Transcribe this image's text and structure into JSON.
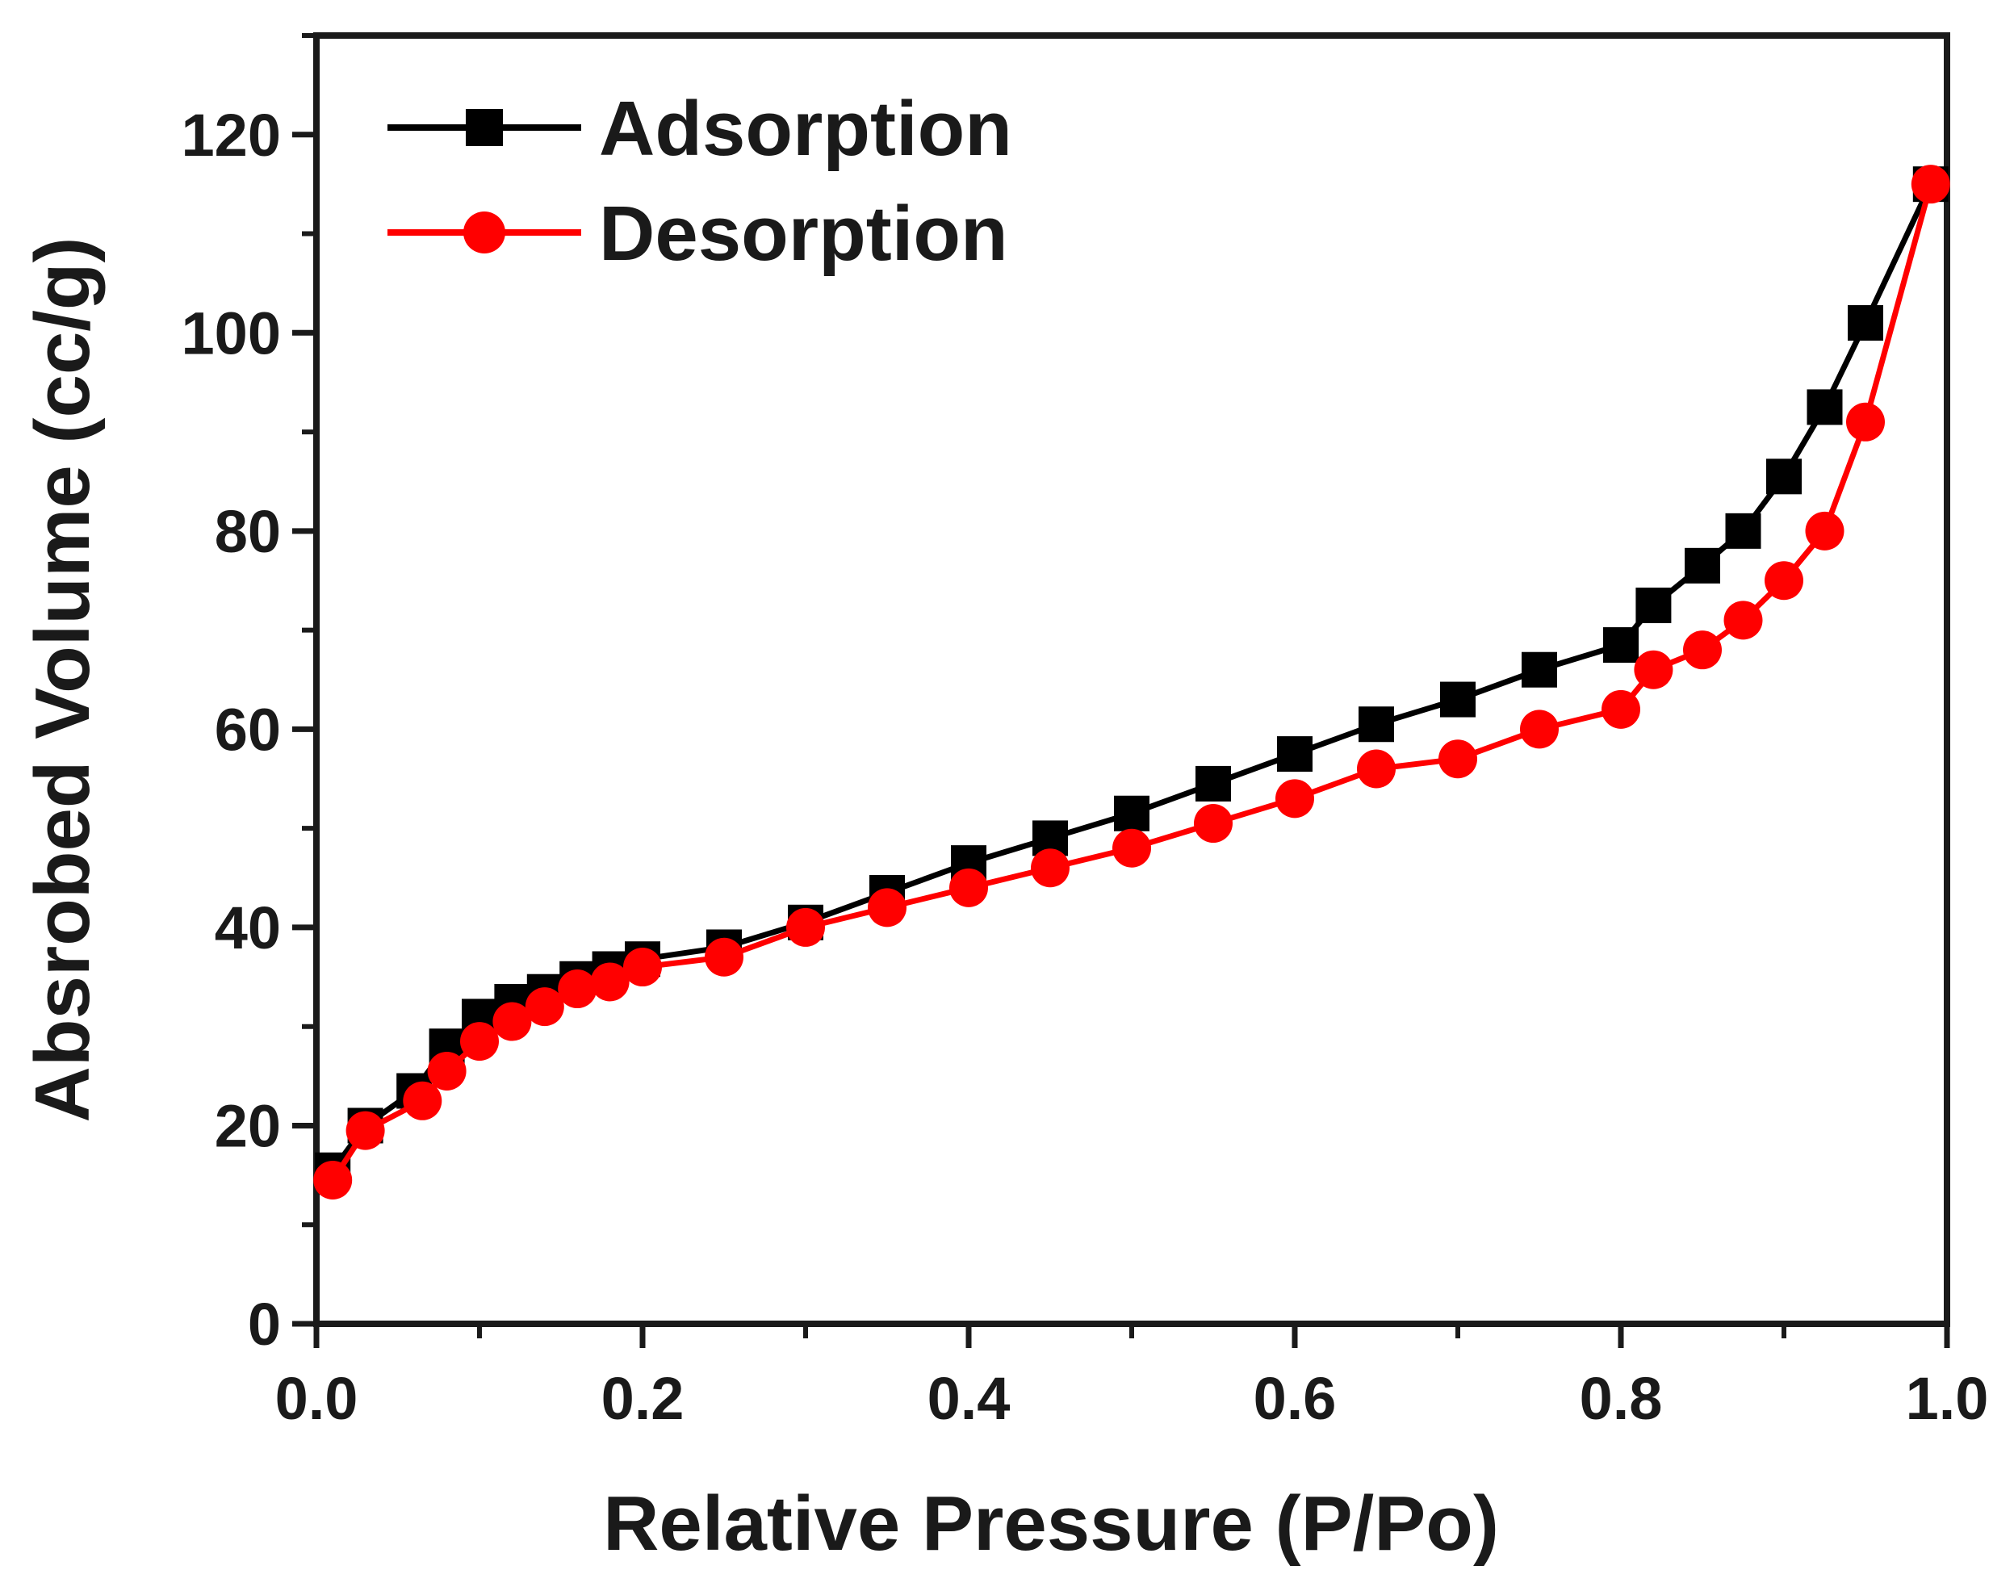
{
  "chart_data": {
    "type": "line",
    "title": "",
    "xlabel": "Relative Pressure (P/Po)",
    "ylabel": "Absrobed Volume (cc/g)",
    "xlim": [
      0.0,
      1.0
    ],
    "ylim": [
      0,
      130
    ],
    "xticks": [
      0.0,
      0.2,
      0.4,
      0.6,
      0.8,
      1.0
    ],
    "xtick_labels": [
      "0.0",
      "0.2",
      "0.4",
      "0.6",
      "0.8",
      "1.0"
    ],
    "yticks": [
      0,
      20,
      40,
      60,
      80,
      100,
      120
    ],
    "ytick_labels": [
      "0",
      "20",
      "40",
      "60",
      "80",
      "100",
      "120"
    ],
    "grid": false,
    "legend_position": "top-left",
    "series": [
      {
        "name": "Adsorption",
        "color": "#000000",
        "marker": "square",
        "x": [
          0.01,
          0.03,
          0.06,
          0.08,
          0.1,
          0.12,
          0.14,
          0.16,
          0.18,
          0.2,
          0.25,
          0.3,
          0.35,
          0.4,
          0.45,
          0.5,
          0.55,
          0.6,
          0.65,
          0.7,
          0.75,
          0.8,
          0.82,
          0.85,
          0.875,
          0.9,
          0.925,
          0.95,
          0.99
        ],
        "y": [
          15.5,
          20,
          23.5,
          28,
          31,
          32.5,
          33.5,
          34.8,
          35.8,
          36.8,
          38,
          40.5,
          43.5,
          46.5,
          49,
          51.5,
          54.5,
          57.5,
          60.5,
          63,
          66,
          68.5,
          72.5,
          76.5,
          80,
          85.5,
          92.5,
          101,
          115
        ]
      },
      {
        "name": "Desorption",
        "color": "#ff0000",
        "marker": "circle",
        "x": [
          0.01,
          0.03,
          0.065,
          0.08,
          0.1,
          0.12,
          0.14,
          0.16,
          0.18,
          0.2,
          0.25,
          0.3,
          0.35,
          0.4,
          0.45,
          0.5,
          0.55,
          0.6,
          0.65,
          0.7,
          0.75,
          0.8,
          0.82,
          0.85,
          0.875,
          0.9,
          0.925,
          0.95,
          0.99
        ],
        "y": [
          14.5,
          19.5,
          22.5,
          25.5,
          28.5,
          30.5,
          32,
          33.8,
          34.5,
          36,
          37,
          40,
          42,
          44,
          46,
          48,
          50.5,
          53,
          56,
          57,
          60,
          62,
          66,
          68,
          71,
          75,
          80,
          91,
          115
        ]
      }
    ]
  }
}
